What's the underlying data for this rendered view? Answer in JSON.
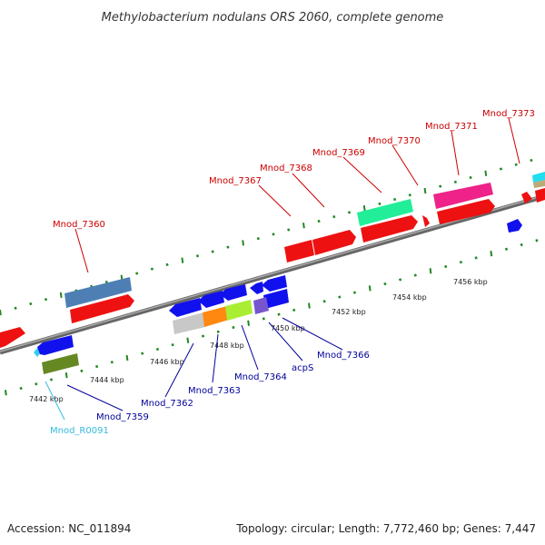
{
  "title": "Methylobacterium nodulans ORS 2060, complete genome",
  "footer": {
    "accession": "Accession: NC_011894",
    "summary": "Topology: circular; Length: 7,772,460 bp; Genes: 7,447"
  },
  "colors": {
    "forward_label": "#cc0000",
    "reverse_label": "#000099",
    "rna_label": "#33bbdd",
    "backbone": "#888888",
    "tick": "#228822"
  },
  "scale_ticks": [
    "7442 kbp",
    "7444 kbp",
    "7446 kbp",
    "7448 kbp",
    "7450 kbp",
    "7452 kbp",
    "7454 kbp",
    "7456 kbp"
  ],
  "forward_labels": [
    "Mnod_7360",
    "Mnod_7367",
    "Mnod_7368",
    "Mnod_7369",
    "Mnod_7370",
    "Mnod_7371",
    "Mnod_7373"
  ],
  "reverse_labels": [
    "Mnod_7359",
    "Mnod_7362",
    "Mnod_7363",
    "Mnod_7364",
    "acpS",
    "Mnod_7366"
  ],
  "rna_labels": [
    "Mnod_R0091"
  ]
}
